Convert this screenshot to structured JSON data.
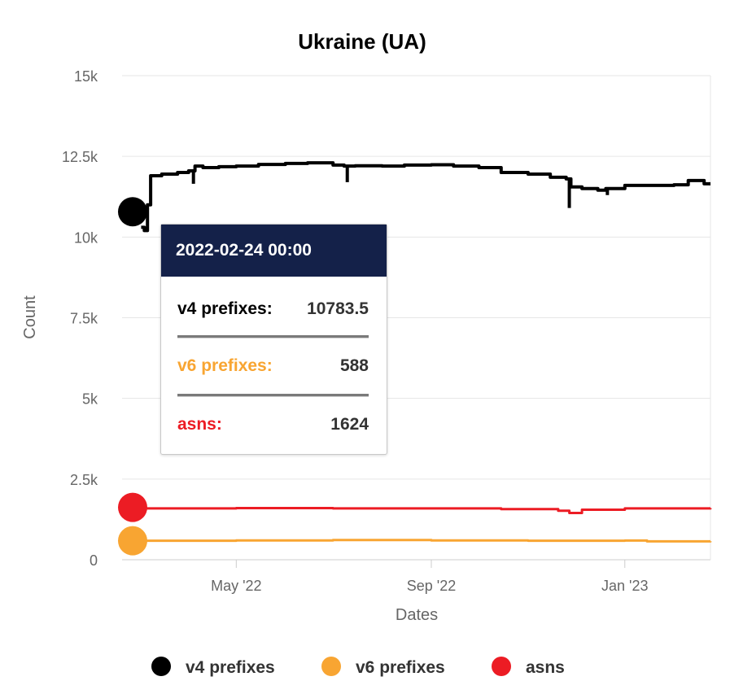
{
  "colors": {
    "v4": "#000000",
    "v6": "#f8a532",
    "asns": "#ec1c24",
    "grid": "#e6e6e6",
    "tooltip_header": "#142149"
  },
  "tooltip": {
    "date": "2022-02-24 00:00",
    "rows": [
      {
        "label": "v4 prefixes:",
        "value": "10783.5",
        "color": "#000000"
      },
      {
        "label": "v6 prefixes:",
        "value": "588",
        "color": "#f8a532"
      },
      {
        "label": "asns:",
        "value": "1624",
        "color": "#ec1c24"
      }
    ]
  },
  "chart_data": {
    "type": "line",
    "title": "Ukraine (UA)",
    "xlabel": "Dates",
    "ylabel": "Count",
    "ylim": [
      0,
      15000
    ],
    "xlim": [
      "2022-02-18",
      "2023-02-24"
    ],
    "y_ticks": [
      0,
      2500,
      5000,
      7500,
      10000,
      12500,
      15000
    ],
    "y_tick_labels": [
      "0",
      "2.5k",
      "5k",
      "7.5k",
      "10k",
      "12.5k",
      "15k"
    ],
    "x_ticks": [
      "2022-05-01",
      "2022-09-01",
      "2023-01-01"
    ],
    "x_tick_labels": [
      "May '22",
      "Sep '22",
      "Jan '23"
    ],
    "grid": true,
    "legend_position": "bottom",
    "highlight_date": "2022-02-24",
    "series": [
      {
        "name": "v4 prefixes",
        "color": "#000000",
        "points": [
          [
            "2022-02-24",
            10783.5
          ],
          [
            "2022-03-02",
            10300
          ],
          [
            "2022-03-04",
            10200
          ],
          [
            "2022-03-06",
            11000
          ],
          [
            "2022-03-08",
            11900
          ],
          [
            "2022-03-15",
            11950
          ],
          [
            "2022-03-25",
            12000
          ],
          [
            "2022-04-01",
            12050
          ],
          [
            "2022-04-05",
            12200
          ],
          [
            "2022-04-10",
            12150
          ],
          [
            "2022-04-20",
            12180
          ],
          [
            "2022-05-01",
            12200
          ],
          [
            "2022-05-15",
            12250
          ],
          [
            "2022-06-01",
            12280
          ],
          [
            "2022-06-15",
            12300
          ],
          [
            "2022-07-01",
            12230
          ],
          [
            "2022-07-08",
            12200
          ],
          [
            "2022-07-15",
            12210
          ],
          [
            "2022-08-01",
            12200
          ],
          [
            "2022-08-15",
            12230
          ],
          [
            "2022-09-01",
            12240
          ],
          [
            "2022-09-15",
            12200
          ],
          [
            "2022-10-01",
            12150
          ],
          [
            "2022-10-15",
            12000
          ],
          [
            "2022-11-01",
            11950
          ],
          [
            "2022-11-15",
            11850
          ],
          [
            "2022-11-25",
            11800
          ],
          [
            "2022-11-28",
            11550
          ],
          [
            "2022-12-05",
            11500
          ],
          [
            "2022-12-15",
            11450
          ],
          [
            "2022-12-20",
            11500
          ],
          [
            "2023-01-01",
            11600
          ],
          [
            "2023-01-15",
            11600
          ],
          [
            "2023-02-01",
            11620
          ],
          [
            "2023-02-10",
            11750
          ],
          [
            "2023-02-18",
            11750
          ],
          [
            "2023-02-20",
            11650
          ],
          [
            "2023-02-24",
            11650
          ]
        ],
        "dips": [
          [
            "2022-04-04",
            11650
          ],
          [
            "2022-07-10",
            11700
          ],
          [
            "2022-11-27",
            10900
          ],
          [
            "2022-12-21",
            11300
          ]
        ]
      },
      {
        "name": "v6 prefixes",
        "color": "#f8a532",
        "points": [
          [
            "2022-02-24",
            588
          ],
          [
            "2022-03-04",
            590
          ],
          [
            "2022-05-01",
            600
          ],
          [
            "2022-07-01",
            610
          ],
          [
            "2022-09-01",
            600
          ],
          [
            "2022-11-01",
            590
          ],
          [
            "2023-01-01",
            595
          ],
          [
            "2023-01-15",
            570
          ],
          [
            "2023-02-24",
            575
          ]
        ]
      },
      {
        "name": "asns",
        "color": "#ec1c24",
        "points": [
          [
            "2022-02-24",
            1624
          ],
          [
            "2022-03-04",
            1590
          ],
          [
            "2022-05-01",
            1600
          ],
          [
            "2022-07-01",
            1590
          ],
          [
            "2022-09-01",
            1590
          ],
          [
            "2022-10-15",
            1570
          ],
          [
            "2022-11-20",
            1520
          ],
          [
            "2022-11-27",
            1450
          ],
          [
            "2022-12-05",
            1550
          ],
          [
            "2023-01-01",
            1590
          ],
          [
            "2023-02-24",
            1600
          ]
        ]
      }
    ]
  }
}
